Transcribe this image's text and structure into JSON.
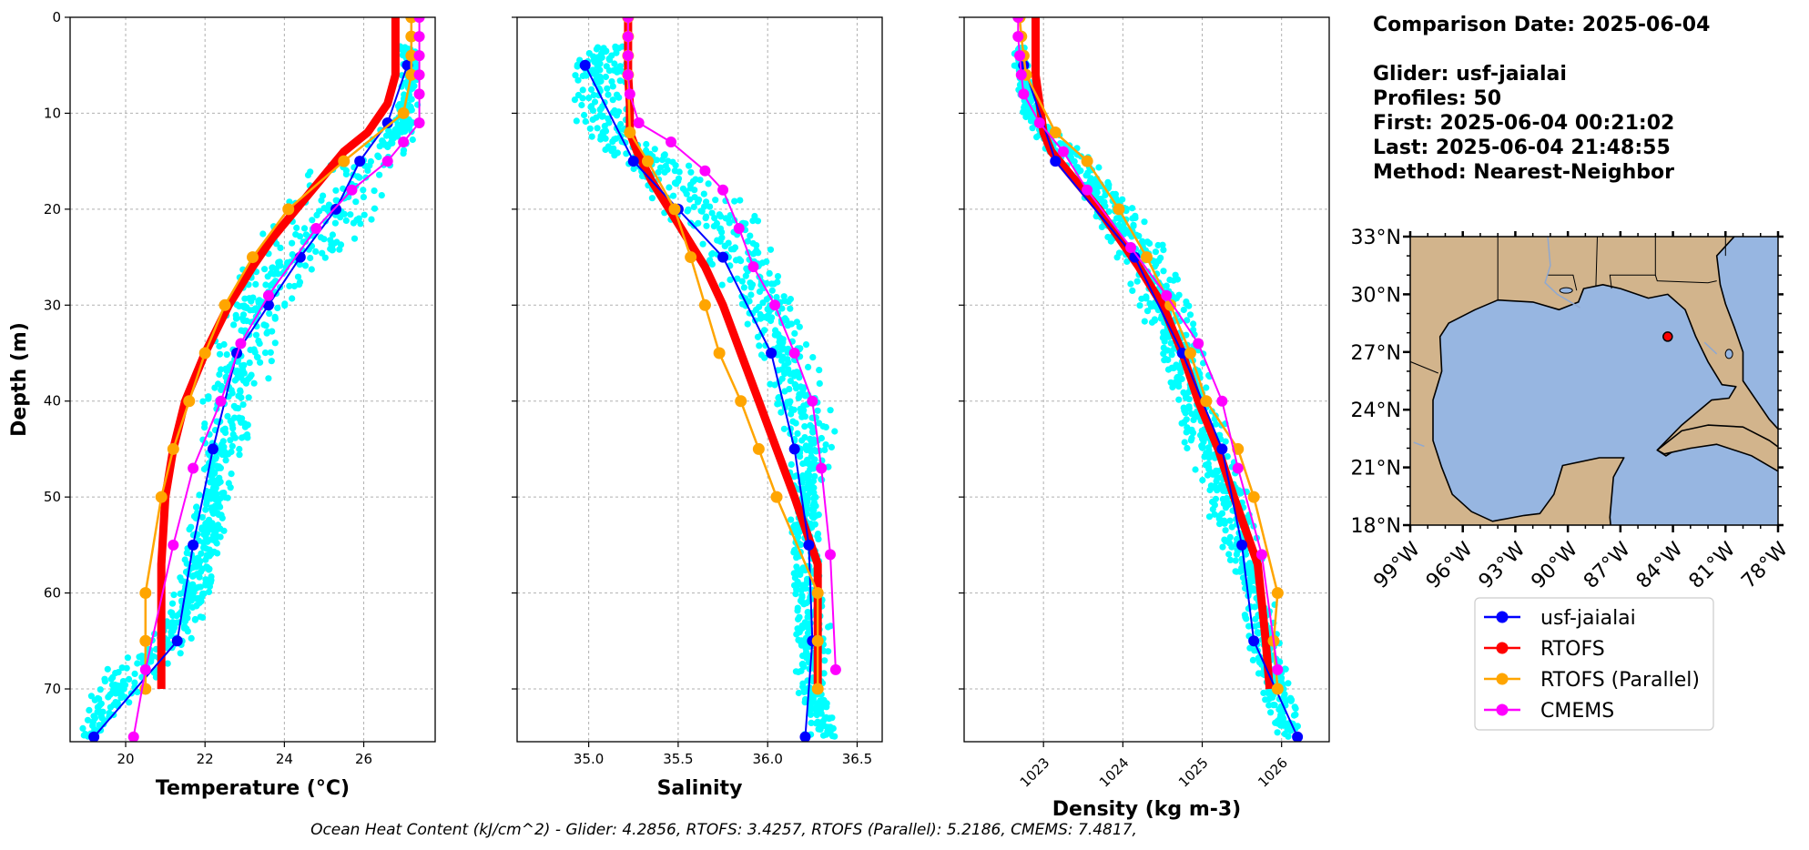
{
  "summary": {
    "comparison": "Comparison Date: 2025-06-04",
    "glider": "Glider: usf-jaialai",
    "profiles": "Profiles: 50",
    "first": "First: 2025-06-04 00:21:02",
    "last": "Last: 2025-06-04 21:48:55",
    "method": "Method: Nearest-Neighbor"
  },
  "footer": "Ocean Heat Content (kJ/cm^2) - Glider: 4.2856,  RTOFS: 3.4257,  RTOFS (Parallel): 5.2186,  CMEMS: 7.4817,",
  "colors": {
    "glider": "#0000ff",
    "rtofs": "#ff0000",
    "rtofs_parallel": "#ffa500",
    "cmems": "#ff00ff",
    "raw": "#00ffff",
    "land": "#d2b48c",
    "ocean": "#97b6e1"
  },
  "map": {
    "lat_ticks": [
      "33°N",
      "30°N",
      "27°N",
      "24°N",
      "21°N",
      "18°N"
    ],
    "lon_ticks": [
      "99°W",
      "96°W",
      "93°W",
      "90°W",
      "87°W",
      "84°W",
      "81°W",
      "78°W"
    ],
    "extent": {
      "lon": [
        -99,
        -78
      ],
      "lat": [
        18,
        33
      ]
    },
    "glider_location": {
      "lon": -84.3,
      "lat": 27.8
    }
  },
  "chart_data": [
    {
      "type": "line",
      "xlabel": "Temperature (°C)",
      "ylabel": "Depth (m)",
      "xlim": [
        18.6,
        27.8
      ],
      "ylim": [
        75.5,
        0
      ],
      "xticks": [
        20,
        22,
        24,
        26
      ],
      "yticks": [
        0,
        10,
        20,
        30,
        40,
        50,
        60,
        70
      ],
      "grid": true,
      "raw_cloud": {
        "depth": [
          3,
          5,
          8,
          10,
          12,
          14,
          16,
          18,
          20,
          22,
          25,
          28,
          30,
          33,
          36,
          40,
          45,
          50,
          55,
          60,
          65,
          68,
          70,
          72,
          75
        ],
        "min": [
          26.9,
          26.9,
          26.9,
          26.8,
          26.3,
          25.5,
          24.6,
          24.0,
          23.6,
          23.4,
          23.0,
          22.6,
          22.4,
          22.2,
          22.0,
          21.9,
          21.8,
          21.6,
          21.5,
          21.2,
          20.6,
          19.2,
          19.1,
          18.9,
          18.8
        ],
        "max": [
          27.4,
          27.4,
          27.4,
          27.4,
          27.3,
          27.2,
          27.1,
          27.0,
          26.8,
          26.3,
          25.4,
          24.7,
          24.3,
          24.0,
          23.8,
          23.4,
          23.1,
          22.8,
          22.4,
          22.2,
          21.8,
          21.3,
          20.6,
          20.0,
          19.3
        ]
      },
      "series": [
        {
          "name": "usf-jaialai",
          "x": [
            27.1,
            26.6,
            25.9,
            25.3,
            24.4,
            23.6,
            22.8,
            22.2,
            21.7,
            21.3,
            19.2
          ],
          "y": [
            5,
            11,
            15,
            20,
            25,
            30,
            35,
            45,
            55,
            65,
            75
          ]
        },
        {
          "name": "RTOFS",
          "x": [
            26.8,
            26.8,
            26.8,
            26.6,
            26.1,
            25.5,
            24.9,
            24.3,
            23.7,
            23.2,
            22.6,
            22.0,
            21.5,
            21.2,
            21.0,
            20.9,
            20.9,
            20.9
          ],
          "y": [
            0,
            3,
            6,
            9,
            12,
            14,
            17,
            20,
            23,
            26,
            30,
            35,
            40,
            45,
            50,
            57,
            65,
            70
          ]
        },
        {
          "name": "RTOFS (Parallel)",
          "x": [
            27.2,
            27.2,
            27.2,
            27.2,
            27.0,
            25.5,
            24.1,
            23.2,
            22.5,
            22.0,
            21.6,
            21.2,
            20.9,
            20.5,
            20.5,
            20.5
          ],
          "y": [
            0,
            2,
            4,
            6,
            10,
            15,
            20,
            25,
            30,
            35,
            40,
            45,
            50,
            60,
            65,
            70
          ]
        },
        {
          "name": "CMEMS",
          "x": [
            27.4,
            27.4,
            27.4,
            27.4,
            27.4,
            27.4,
            27.0,
            26.6,
            25.7,
            24.8,
            23.6,
            22.9,
            22.4,
            21.7,
            21.2,
            20.5,
            20.2
          ],
          "y": [
            0,
            2,
            4,
            6,
            8,
            11,
            13,
            15,
            18,
            22,
            29,
            34,
            40,
            47,
            55,
            68,
            75
          ]
        }
      ]
    },
    {
      "type": "line",
      "xlabel": "Salinity",
      "ylabel": "",
      "xlim": [
        34.6,
        36.64
      ],
      "ylim": [
        75.5,
        0
      ],
      "xticks": [
        35.0,
        35.5,
        36.0,
        36.5
      ],
      "grid": true,
      "raw_cloud": {
        "depth": [
          3,
          5,
          8,
          10,
          12,
          14,
          16,
          18,
          20,
          22,
          25,
          28,
          30,
          33,
          36,
          40,
          42,
          45,
          50,
          55,
          60,
          62,
          65,
          70,
          75
        ],
        "min": [
          34.95,
          34.9,
          34.88,
          34.88,
          34.95,
          35.05,
          35.15,
          35.25,
          35.35,
          35.45,
          35.6,
          35.7,
          35.8,
          35.85,
          35.95,
          36.0,
          36.05,
          36.1,
          36.12,
          36.12,
          36.12,
          36.12,
          36.15,
          36.15,
          36.2
        ],
        "max": [
          35.25,
          35.25,
          35.25,
          35.25,
          35.3,
          35.45,
          35.65,
          35.8,
          35.95,
          36.0,
          36.1,
          36.15,
          36.2,
          36.25,
          36.3,
          36.35,
          36.4,
          36.38,
          36.3,
          36.3,
          36.35,
          36.38,
          36.35,
          36.35,
          36.4
        ]
      },
      "series": [
        {
          "name": "usf-jaialai",
          "x": [
            34.98,
            35.25,
            35.5,
            35.75,
            36.02,
            36.15,
            36.23,
            36.25,
            36.21
          ],
          "y": [
            5,
            15,
            20,
            25,
            35,
            45,
            55,
            65,
            75
          ]
        },
        {
          "name": "RTOFS",
          "x": [
            35.22,
            35.22,
            35.22,
            35.23,
            35.23,
            35.27,
            35.35,
            35.45,
            35.55,
            35.65,
            35.75,
            35.85,
            35.95,
            36.05,
            36.15,
            36.28,
            36.28,
            36.28
          ],
          "y": [
            0,
            3,
            6,
            9,
            12,
            14,
            17,
            20,
            23,
            26,
            30,
            35,
            40,
            45,
            50,
            57,
            65,
            70
          ]
        },
        {
          "name": "RTOFS (Parallel)",
          "x": [
            35.22,
            35.22,
            35.22,
            35.22,
            35.23,
            35.33,
            35.48,
            35.57,
            35.65,
            35.73,
            35.85,
            35.95,
            36.05,
            36.28,
            36.28,
            36.28
          ],
          "y": [
            0,
            2,
            4,
            6,
            12,
            15,
            20,
            25,
            30,
            35,
            40,
            45,
            50,
            60,
            65,
            70
          ]
        },
        {
          "name": "CMEMS",
          "x": [
            35.22,
            35.22,
            35.22,
            35.22,
            35.23,
            35.28,
            35.46,
            35.65,
            35.75,
            35.84,
            35.92,
            36.04,
            36.15,
            36.25,
            36.3,
            36.35,
            36.38
          ],
          "y": [
            0,
            2,
            4,
            6,
            8,
            11,
            13,
            16,
            18,
            22,
            26,
            30,
            35,
            40,
            47,
            56,
            68
          ]
        }
      ]
    },
    {
      "type": "line",
      "xlabel": "Density (kg m-3)",
      "ylabel": "",
      "xlim": [
        1022.0,
        1026.6
      ],
      "ylim": [
        75.5,
        0
      ],
      "xticks": [
        1023,
        1024,
        1025,
        1026
      ],
      "grid": true,
      "raw_cloud": {
        "depth": [
          3,
          5,
          8,
          10,
          12,
          14,
          16,
          18,
          20,
          22,
          25,
          28,
          30,
          33,
          36,
          40,
          45,
          50,
          55,
          60,
          65,
          70,
          75
        ],
        "min": [
          1022.6,
          1022.6,
          1022.65,
          1022.7,
          1022.85,
          1023.0,
          1023.2,
          1023.4,
          1023.55,
          1023.7,
          1023.85,
          1024.0,
          1024.15,
          1024.3,
          1024.45,
          1024.6,
          1024.8,
          1025.0,
          1025.2,
          1025.4,
          1025.55,
          1025.7,
          1025.9
        ],
        "max": [
          1022.8,
          1022.85,
          1022.9,
          1023.0,
          1023.2,
          1023.5,
          1023.8,
          1024.0,
          1024.2,
          1024.4,
          1024.6,
          1024.8,
          1024.9,
          1025.0,
          1025.1,
          1025.25,
          1025.4,
          1025.6,
          1025.75,
          1025.9,
          1026.0,
          1026.15,
          1026.3
        ]
      },
      "series": [
        {
          "name": "usf-jaialai",
          "x": [
            1022.75,
            1023.15,
            1024.15,
            1024.75,
            1025.25,
            1025.5,
            1025.65,
            1026.2
          ],
          "y": [
            5,
            15,
            25,
            35,
            45,
            55,
            65,
            75
          ]
        },
        {
          "name": "RTOFS",
          "x": [
            1022.9,
            1022.9,
            1022.9,
            1022.95,
            1023.0,
            1023.1,
            1023.4,
            1023.7,
            1023.95,
            1024.2,
            1024.5,
            1024.75,
            1024.95,
            1025.2,
            1025.4,
            1025.7,
            1025.8,
            1025.85
          ],
          "y": [
            0,
            3,
            6,
            9,
            12,
            14,
            17,
            20,
            23,
            26,
            30,
            35,
            40,
            45,
            50,
            57,
            65,
            70
          ]
        },
        {
          "name": "RTOFS (Parallel)",
          "x": [
            1022.7,
            1022.72,
            1022.75,
            1022.78,
            1023.15,
            1023.55,
            1023.95,
            1024.3,
            1024.6,
            1024.85,
            1025.05,
            1025.45,
            1025.65,
            1025.95,
            1025.9,
            1025.95
          ],
          "y": [
            0,
            2,
            4,
            6,
            12,
            15,
            20,
            25,
            30,
            35,
            40,
            45,
            50,
            60,
            65,
            70
          ]
        },
        {
          "name": "CMEMS",
          "x": [
            1022.68,
            1022.68,
            1022.7,
            1022.72,
            1022.75,
            1022.95,
            1023.25,
            1023.55,
            1024.1,
            1024.55,
            1024.95,
            1025.25,
            1025.45,
            1025.75,
            1025.95
          ],
          "y": [
            0,
            2,
            4,
            6,
            8,
            11,
            14,
            18,
            24,
            29,
            34,
            40,
            47,
            56,
            68
          ]
        }
      ]
    }
  ],
  "legend": [
    {
      "name": "usf-jaialai",
      "color": "#0000ff"
    },
    {
      "name": "RTOFS",
      "color": "#ff0000"
    },
    {
      "name": "RTOFS (Parallel)",
      "color": "#ffa500"
    },
    {
      "name": "CMEMS",
      "color": "#ff00ff"
    }
  ]
}
